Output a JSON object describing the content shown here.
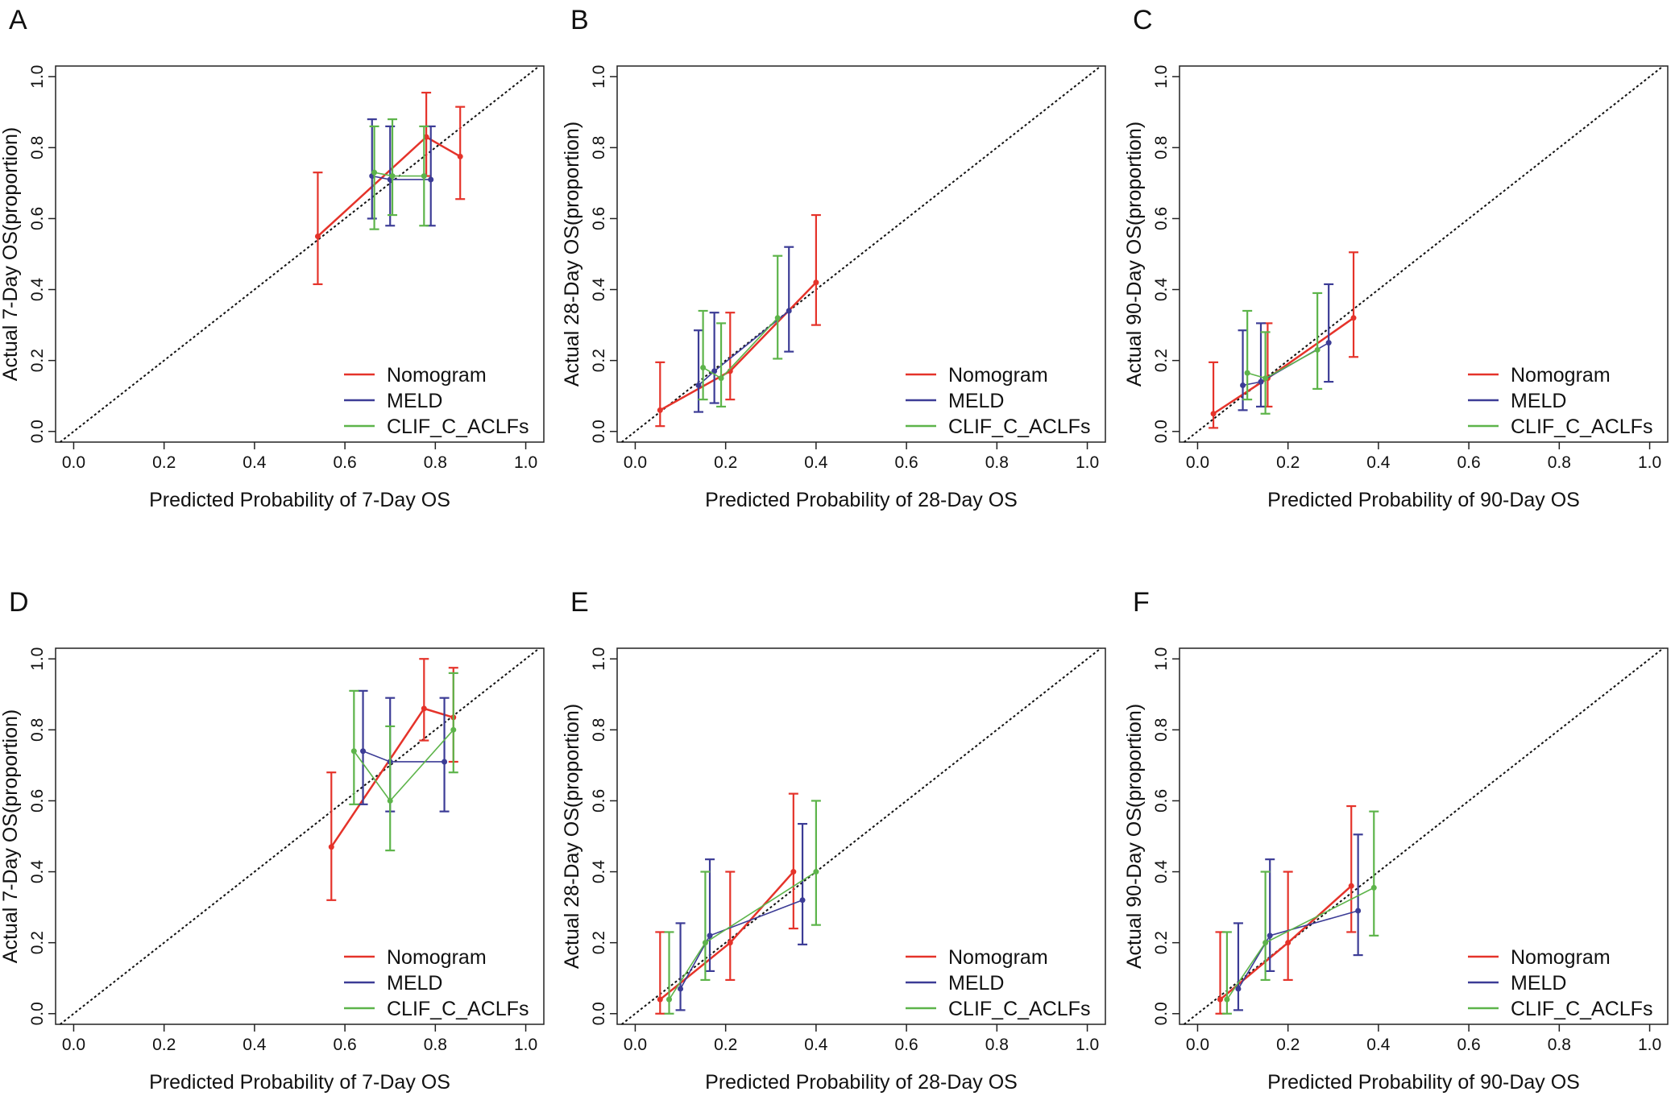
{
  "chart_data": [
    {
      "type": "line",
      "panel": "A",
      "x_label": "Predicted Probability of 7-Day OS",
      "y_label": "Actual 7-Day OS(proportion)",
      "xlim": [
        -0.04,
        1.04
      ],
      "ylim": [
        -0.03,
        1.03
      ],
      "xticks": [
        {
          "value": 0,
          "label": "0.0"
        },
        0.2,
        0.4,
        0.6,
        0.8,
        {
          "value": 1,
          "label": "1.0"
        }
      ],
      "yticks": [
        {
          "value": 0,
          "label": "0.0"
        },
        0.2,
        0.4,
        0.6,
        0.8,
        {
          "value": 1,
          "label": "1.0"
        }
      ],
      "reference_line": true,
      "legend": "bottom-right",
      "series": [
        {
          "name": "Nomogram",
          "color": "#e5332a",
          "x": [
            0.54,
            0.78,
            0.855
          ],
          "values": [
            0.55,
            0.83,
            0.775
          ],
          "ci_low": [
            0.415,
            0.72,
            0.655
          ],
          "ci_high": [
            0.73,
            0.955,
            0.915
          ]
        },
        {
          "name": "MELD",
          "color": "#3c3c96",
          "x": [
            0.66,
            0.7,
            0.79
          ],
          "values": [
            0.72,
            0.71,
            0.71
          ],
          "ci_low": [
            0.6,
            0.58,
            0.58
          ],
          "ci_high": [
            0.88,
            0.86,
            0.86
          ]
        },
        {
          "name": "CLIF_C_ACLFs",
          "color": "#5db44a",
          "x": [
            0.665,
            0.705,
            0.775
          ],
          "values": [
            0.73,
            0.72,
            0.72
          ],
          "ci_low": [
            0.57,
            0.61,
            0.58
          ],
          "ci_high": [
            0.86,
            0.88,
            0.86
          ]
        }
      ]
    },
    {
      "type": "line",
      "panel": "B",
      "x_label": "Predicted Probability of 28-Day OS",
      "y_label": "Actual 28-Day OS(proportion)",
      "xlim": [
        -0.04,
        1.04
      ],
      "ylim": [
        -0.03,
        1.03
      ],
      "xticks": [
        {
          "value": 0,
          "label": "0.0"
        },
        0.2,
        0.4,
        0.6,
        0.8,
        {
          "value": 1,
          "label": "1.0"
        }
      ],
      "yticks": [
        {
          "value": 0,
          "label": "0.0"
        },
        0.2,
        0.4,
        0.6,
        0.8,
        {
          "value": 1,
          "label": "1.0"
        }
      ],
      "reference_line": true,
      "legend": "bottom-right",
      "series": [
        {
          "name": "Nomogram",
          "color": "#e5332a",
          "x": [
            0.055,
            0.21,
            0.4
          ],
          "values": [
            0.06,
            0.17,
            0.42
          ],
          "ci_low": [
            0.015,
            0.09,
            0.3
          ],
          "ci_high": [
            0.195,
            0.335,
            0.61
          ]
        },
        {
          "name": "MELD",
          "color": "#3c3c96",
          "x": [
            0.14,
            0.175,
            0.34
          ],
          "values": [
            0.13,
            0.17,
            0.34
          ],
          "ci_low": [
            0.055,
            0.08,
            0.225
          ],
          "ci_high": [
            0.285,
            0.335,
            0.52
          ]
        },
        {
          "name": "CLIF_C_ACLFs",
          "color": "#5db44a",
          "x": [
            0.15,
            0.19,
            0.315
          ],
          "values": [
            0.18,
            0.15,
            0.32
          ],
          "ci_low": [
            0.09,
            0.07,
            0.205
          ],
          "ci_high": [
            0.34,
            0.305,
            0.495
          ]
        }
      ]
    },
    {
      "type": "line",
      "panel": "C",
      "x_label": "Predicted Probability of 90-Day OS",
      "y_label": "Actual 90-Day OS(proportion)",
      "xlim": [
        -0.04,
        1.04
      ],
      "ylim": [
        -0.03,
        1.03
      ],
      "xticks": [
        {
          "value": 0,
          "label": "0.0"
        },
        0.2,
        0.4,
        0.6,
        0.8,
        {
          "value": 1,
          "label": "1.0"
        }
      ],
      "yticks": [
        {
          "value": 0,
          "label": "0.0"
        },
        0.2,
        0.4,
        0.6,
        0.8,
        {
          "value": 1,
          "label": "1.0"
        }
      ],
      "reference_line": true,
      "legend": "bottom-right",
      "series": [
        {
          "name": "Nomogram",
          "color": "#e5332a",
          "x": [
            0.035,
            0.155,
            0.345
          ],
          "values": [
            0.05,
            0.15,
            0.32
          ],
          "ci_low": [
            0.01,
            0.07,
            0.21
          ],
          "ci_high": [
            0.195,
            0.305,
            0.505
          ]
        },
        {
          "name": "MELD",
          "color": "#3c3c96",
          "x": [
            0.1,
            0.14,
            0.29
          ],
          "values": [
            0.13,
            0.14,
            0.25
          ],
          "ci_low": [
            0.06,
            0.07,
            0.14
          ],
          "ci_high": [
            0.285,
            0.305,
            0.415
          ]
        },
        {
          "name": "CLIF_C_ACLFs",
          "color": "#5db44a",
          "x": [
            0.11,
            0.15,
            0.265
          ],
          "values": [
            0.165,
            0.15,
            0.23
          ],
          "ci_low": [
            0.09,
            0.05,
            0.12
          ],
          "ci_high": [
            0.34,
            0.28,
            0.39
          ]
        }
      ]
    },
    {
      "type": "line",
      "panel": "D",
      "x_label": "Predicted Probability of 7-Day OS",
      "y_label": "Actual 7-Day OS(proportion)",
      "xlim": [
        -0.04,
        1.04
      ],
      "ylim": [
        -0.03,
        1.03
      ],
      "xticks": [
        {
          "value": 0,
          "label": "0.0"
        },
        0.2,
        0.4,
        0.6,
        0.8,
        {
          "value": 1,
          "label": "1.0"
        }
      ],
      "yticks": [
        {
          "value": 0,
          "label": "0.0"
        },
        0.2,
        0.4,
        0.6,
        0.8,
        {
          "value": 1,
          "label": "1.0"
        }
      ],
      "reference_line": true,
      "legend": "bottom-right",
      "series": [
        {
          "name": "Nomogram",
          "color": "#e5332a",
          "x": [
            0.57,
            0.775,
            0.84
          ],
          "values": [
            0.47,
            0.86,
            0.835
          ],
          "ci_low": [
            0.32,
            0.77,
            0.71
          ],
          "ci_high": [
            0.68,
            1.0,
            0.975
          ]
        },
        {
          "name": "MELD",
          "color": "#3c3c96",
          "x": [
            0.64,
            0.7,
            0.82
          ],
          "values": [
            0.74,
            0.71,
            0.71
          ],
          "ci_low": [
            0.59,
            0.57,
            0.57
          ],
          "ci_high": [
            0.91,
            0.89,
            0.89
          ]
        },
        {
          "name": "CLIF_C_ACLFs",
          "color": "#5db44a",
          "x": [
            0.62,
            0.7,
            0.84
          ],
          "values": [
            0.74,
            0.6,
            0.8
          ],
          "ci_low": [
            0.59,
            0.46,
            0.68
          ],
          "ci_high": [
            0.91,
            0.81,
            0.96
          ]
        }
      ]
    },
    {
      "type": "line",
      "panel": "E",
      "x_label": "Predicted Probability of 28-Day OS",
      "y_label": "Actual 28-Day OS(proportion)",
      "xlim": [
        -0.04,
        1.04
      ],
      "ylim": [
        -0.03,
        1.03
      ],
      "xticks": [
        {
          "value": 0,
          "label": "0.0"
        },
        0.2,
        0.4,
        0.6,
        0.8,
        {
          "value": 1,
          "label": "1.0"
        }
      ],
      "yticks": [
        {
          "value": 0,
          "label": "0.0"
        },
        0.2,
        0.4,
        0.6,
        0.8,
        {
          "value": 1,
          "label": "1.0"
        }
      ],
      "reference_line": true,
      "legend": "bottom-right",
      "series": [
        {
          "name": "Nomogram",
          "color": "#e5332a",
          "x": [
            0.055,
            0.21,
            0.35
          ],
          "values": [
            0.04,
            0.2,
            0.4
          ],
          "ci_low": [
            0.0,
            0.095,
            0.24
          ],
          "ci_high": [
            0.23,
            0.4,
            0.62
          ]
        },
        {
          "name": "MELD",
          "color": "#3c3c96",
          "x": [
            0.1,
            0.165,
            0.37
          ],
          "values": [
            0.07,
            0.22,
            0.32
          ],
          "ci_low": [
            0.01,
            0.12,
            0.195
          ],
          "ci_high": [
            0.255,
            0.435,
            0.535
          ]
        },
        {
          "name": "CLIF_C_ACLFs",
          "color": "#5db44a",
          "x": [
            0.075,
            0.155,
            0.4
          ],
          "values": [
            0.04,
            0.2,
            0.4
          ],
          "ci_low": [
            0.0,
            0.095,
            0.25
          ],
          "ci_high": [
            0.23,
            0.4,
            0.6
          ]
        }
      ]
    },
    {
      "type": "line",
      "panel": "F",
      "x_label": "Predicted Probability of 90-Day OS",
      "y_label": "Actual 90-Day OS(proportion)",
      "xlim": [
        -0.04,
        1.04
      ],
      "ylim": [
        -0.03,
        1.03
      ],
      "xticks": [
        {
          "value": 0,
          "label": "0.0"
        },
        0.2,
        0.4,
        0.6,
        0.8,
        {
          "value": 1,
          "label": "1.0"
        }
      ],
      "yticks": [
        {
          "value": 0,
          "label": "0.0"
        },
        0.2,
        0.4,
        0.6,
        0.8,
        {
          "value": 1,
          "label": "1.0"
        }
      ],
      "reference_line": true,
      "legend": "bottom-right",
      "series": [
        {
          "name": "Nomogram",
          "color": "#e5332a",
          "x": [
            0.05,
            0.2,
            0.34
          ],
          "values": [
            0.04,
            0.2,
            0.36
          ],
          "ci_low": [
            0.0,
            0.095,
            0.23
          ],
          "ci_high": [
            0.23,
            0.4,
            0.585
          ]
        },
        {
          "name": "MELD",
          "color": "#3c3c96",
          "x": [
            0.09,
            0.16,
            0.355
          ],
          "values": [
            0.07,
            0.22,
            0.29
          ],
          "ci_low": [
            0.01,
            0.12,
            0.165
          ],
          "ci_high": [
            0.255,
            0.435,
            0.505
          ]
        },
        {
          "name": "CLIF_C_ACLFs",
          "color": "#5db44a",
          "x": [
            0.065,
            0.15,
            0.39
          ],
          "values": [
            0.04,
            0.2,
            0.355
          ],
          "ci_low": [
            0.0,
            0.095,
            0.22
          ],
          "ci_high": [
            0.23,
            0.4,
            0.57
          ]
        }
      ]
    }
  ]
}
